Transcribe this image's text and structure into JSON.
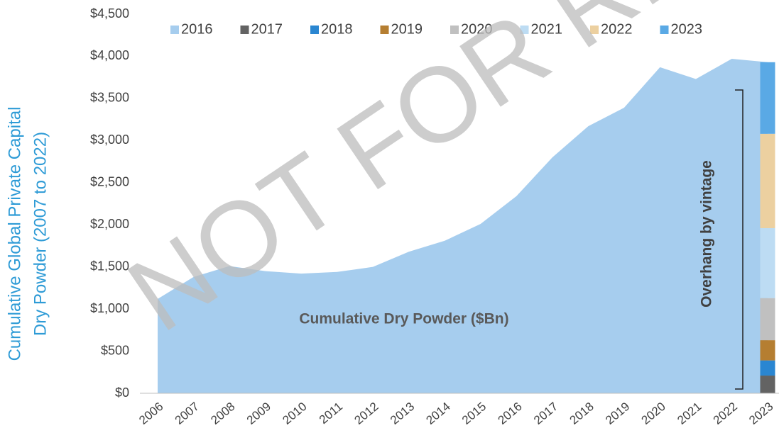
{
  "chart_data": {
    "type": "area",
    "y_axis_label": [
      "Cumulative Global Private Capital",
      "Dry Powder (2007 to 2022)"
    ],
    "annotations": [
      "Cumulative Dry Powder ($Bn)",
      "Overhang by vintage"
    ],
    "watermark": "NOT FOR REDISTRIBUTION",
    "categories": [
      "2006",
      "2007",
      "2008",
      "2009",
      "2010",
      "2011",
      "2012",
      "2013",
      "2014",
      "2015",
      "2016",
      "2017",
      "2018",
      "2019",
      "2020",
      "2021",
      "2022",
      "2023"
    ],
    "series": [
      {
        "name": "2016",
        "color": "#a6cdee",
        "type": "area",
        "values": [
          1120,
          1380,
          1510,
          1450,
          1420,
          1440,
          1500,
          1680,
          1810,
          2010,
          2340,
          2800,
          3170,
          3390,
          3870,
          3730,
          3970,
          3930
        ]
      },
      {
        "name": "2017",
        "color": "#636363",
        "type": "stacked_bar",
        "values": [
          null,
          null,
          null,
          null,
          null,
          null,
          null,
          null,
          null,
          null,
          null,
          null,
          null,
          null,
          null,
          null,
          null,
          210
        ]
      },
      {
        "name": "2018",
        "color": "#2a86d1",
        "type": "stacked_bar",
        "values": [
          null,
          null,
          null,
          null,
          null,
          null,
          null,
          null,
          null,
          null,
          null,
          null,
          null,
          null,
          null,
          null,
          null,
          180
        ]
      },
      {
        "name": "2019",
        "color": "#b57e31",
        "type": "stacked_bar",
        "values": [
          null,
          null,
          null,
          null,
          null,
          null,
          null,
          null,
          null,
          null,
          null,
          null,
          null,
          null,
          null,
          null,
          null,
          240
        ]
      },
      {
        "name": "2020",
        "color": "#c0c0c0",
        "type": "stacked_bar",
        "values": [
          null,
          null,
          null,
          null,
          null,
          null,
          null,
          null,
          null,
          null,
          null,
          null,
          null,
          null,
          null,
          null,
          null,
          500
        ]
      },
      {
        "name": "2021",
        "color": "#bddcf3",
        "type": "stacked_bar",
        "values": [
          null,
          null,
          null,
          null,
          null,
          null,
          null,
          null,
          null,
          null,
          null,
          null,
          null,
          null,
          null,
          null,
          null,
          830
        ]
      },
      {
        "name": "2022",
        "color": "#ecd0a0",
        "type": "stacked_bar",
        "values": [
          null,
          null,
          null,
          null,
          null,
          null,
          null,
          null,
          null,
          null,
          null,
          null,
          null,
          null,
          null,
          null,
          null,
          1120
        ]
      },
      {
        "name": "2023",
        "color": "#5aa9e5",
        "type": "stacked_bar",
        "values": [
          null,
          null,
          null,
          null,
          null,
          null,
          null,
          null,
          null,
          null,
          null,
          null,
          null,
          null,
          null,
          null,
          null,
          850
        ]
      }
    ],
    "ylim": [
      0,
      4500
    ],
    "yticks": [
      {
        "value": 0,
        "label": "$0"
      },
      {
        "value": 500,
        "label": "$500"
      },
      {
        "value": 1000,
        "label": "$1,000"
      },
      {
        "value": 1500,
        "label": "$1,500"
      },
      {
        "value": 2000,
        "label": "$2,000"
      },
      {
        "value": 2500,
        "label": "$2,500"
      },
      {
        "value": 3000,
        "label": "$3,000"
      },
      {
        "value": 3500,
        "label": "$3,500"
      },
      {
        "value": 4000,
        "label": "$4,000"
      },
      {
        "value": 4500,
        "label": "$4,500"
      }
    ],
    "grid": false,
    "legend": "top"
  }
}
